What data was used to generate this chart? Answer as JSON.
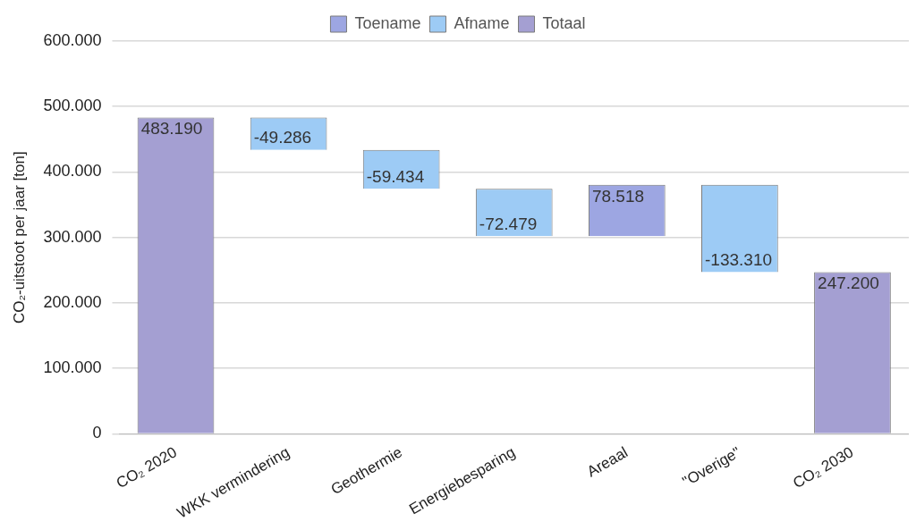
{
  "chart_data": {
    "type": "bar",
    "ylabel": "CO₂-uitstoot per jaar [ton]",
    "categories": [
      "CO₂ 2020",
      "WKK vermindering",
      "Geothermie",
      "Energiebesparing",
      "Areaal",
      "\"Overige\"",
      "CO₂ 2030"
    ],
    "series": [
      {
        "name": "Toename",
        "color": "#9da6e2",
        "values": [
          null,
          null,
          null,
          null,
          78518,
          null,
          null
        ],
        "base": [
          null,
          null,
          null,
          null,
          301991,
          null,
          null
        ],
        "value_labels": [
          null,
          null,
          null,
          null,
          "78.518",
          null,
          null
        ]
      },
      {
        "name": "Afname",
        "color": "#9dcbf5",
        "values": [
          null,
          -49286,
          -59434,
          -72479,
          null,
          -133310,
          null
        ],
        "base": [
          null,
          483190,
          433904,
          374470,
          null,
          380509,
          null
        ],
        "value_labels": [
          null,
          "-49.286",
          "-59.434",
          "-72.479",
          null,
          "-133.310",
          null
        ]
      },
      {
        "name": "Totaal",
        "color": "#a49fd2",
        "values": [
          483190,
          null,
          null,
          null,
          null,
          null,
          247200
        ],
        "base": [
          0,
          null,
          null,
          null,
          null,
          null,
          0
        ],
        "value_labels": [
          "483.190",
          null,
          null,
          null,
          null,
          null,
          "247.200"
        ]
      }
    ],
    "ylim": [
      0,
      600000
    ],
    "yticks": [
      {
        "value": 0,
        "label": "0"
      },
      {
        "value": 100000,
        "label": "100.000"
      },
      {
        "value": 200000,
        "label": "200.000"
      },
      {
        "value": 300000,
        "label": "300.000"
      },
      {
        "value": 400000,
        "label": "400.000"
      },
      {
        "value": 500000,
        "label": "500.000"
      },
      {
        "value": 600000,
        "label": "600.000"
      }
    ],
    "grid": "y",
    "legend": "top"
  }
}
